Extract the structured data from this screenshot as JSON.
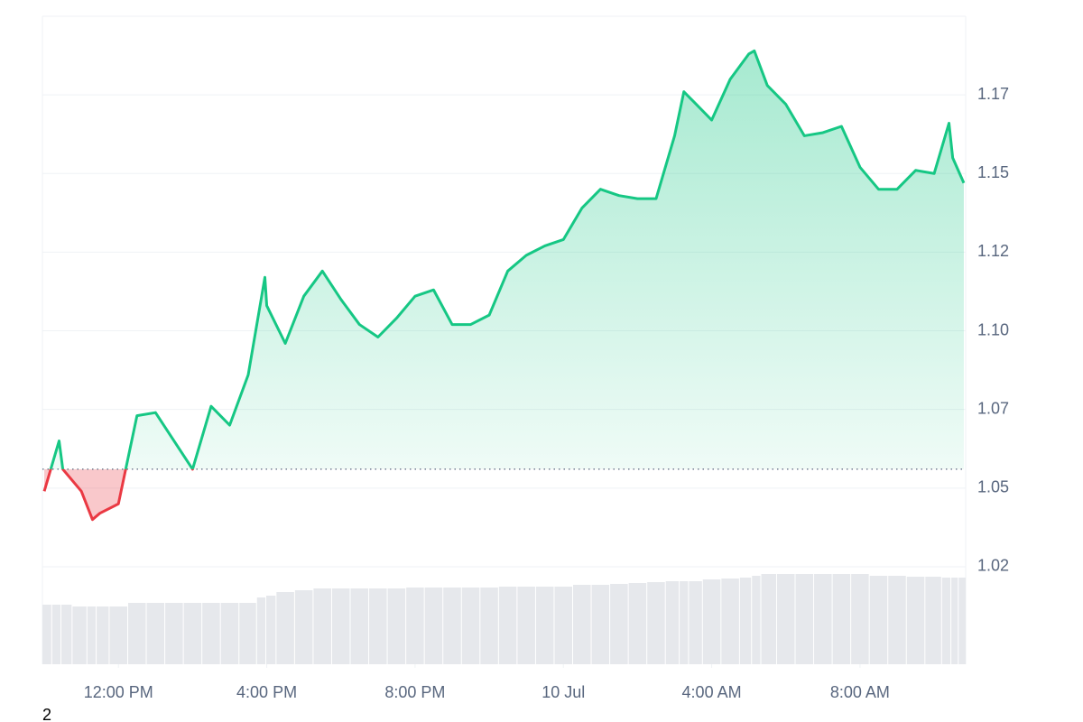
{
  "chart_data": {
    "type": "line",
    "x": [
      10.0,
      10.4,
      10.5,
      11.0,
      11.3,
      11.5,
      12.0,
      12.5,
      13.0,
      13.5,
      14.0,
      14.5,
      15.0,
      15.5,
      15.95,
      16.0,
      16.5,
      17.0,
      17.5,
      18.0,
      18.5,
      19.0,
      19.5,
      20.0,
      20.5,
      21.0,
      21.5,
      22.0,
      22.5,
      23.0,
      23.5,
      24.0,
      24.5,
      25.0,
      25.5,
      26.0,
      26.5,
      27.0,
      27.25,
      27.5,
      28.0,
      28.5,
      29.0,
      29.15,
      29.5,
      30.0,
      30.5,
      31.0,
      31.5,
      32.0,
      32.5,
      33.0,
      33.5,
      34.0,
      34.4,
      34.5,
      34.8
    ],
    "values": [
      1.049,
      1.065,
      1.056,
      1.049,
      1.04,
      1.042,
      1.045,
      1.073,
      1.074,
      1.065,
      1.056,
      1.076,
      1.07,
      1.086,
      1.117,
      1.108,
      1.096,
      1.111,
      1.119,
      1.11,
      1.102,
      1.098,
      1.104,
      1.111,
      1.113,
      1.102,
      1.102,
      1.105,
      1.119,
      1.124,
      1.127,
      1.129,
      1.139,
      1.145,
      1.143,
      1.142,
      1.142,
      1.162,
      1.176,
      1.173,
      1.167,
      1.18,
      1.188,
      1.189,
      1.178,
      1.172,
      1.162,
      1.163,
      1.165,
      1.152,
      1.145,
      1.145,
      1.151,
      1.15,
      1.166,
      1.155,
      1.147
    ],
    "volume": [
      66,
      66,
      66,
      64,
      64,
      64,
      64,
      68,
      68,
      68,
      68,
      68,
      68,
      68,
      74,
      76,
      80,
      82,
      84,
      84,
      84,
      84,
      84,
      85,
      85,
      85,
      85,
      85,
      86,
      86,
      86,
      86,
      88,
      88,
      89,
      90,
      91,
      92,
      92,
      92,
      94,
      95,
      96,
      98,
      100,
      100,
      100,
      100,
      100,
      100,
      98,
      98,
      97,
      97,
      96,
      96,
      96
    ],
    "volume_ylim": [
      0,
      136
    ],
    "baseline": 1.056,
    "color": "#16c784",
    "down_color": "#ea3943",
    "volume_color": "#e6e8ec",
    "xlim": [
      9.95,
      34.85
    ],
    "xticks": [
      {
        "value": 12,
        "label": "12:00 PM"
      },
      {
        "value": 16,
        "label": "4:00 PM"
      },
      {
        "value": 20,
        "label": "8:00 PM"
      },
      {
        "value": 24,
        "label": "10 Jul"
      },
      {
        "value": 28,
        "label": "4:00 AM"
      },
      {
        "value": 32,
        "label": "8:00 AM"
      }
    ],
    "ylim": [
      0.994,
      1.2
    ],
    "yticks": [
      {
        "value": 1.025,
        "label": "1.02"
      },
      {
        "value": 1.05,
        "label": "1.05"
      },
      {
        "value": 1.075,
        "label": "1.07"
      },
      {
        "value": 1.1,
        "label": "1.10"
      },
      {
        "value": 1.125,
        "label": "1.12"
      },
      {
        "value": 1.15,
        "label": "1.15"
      },
      {
        "value": 1.175,
        "label": "1.17"
      }
    ],
    "grid": true,
    "caption": "2"
  }
}
